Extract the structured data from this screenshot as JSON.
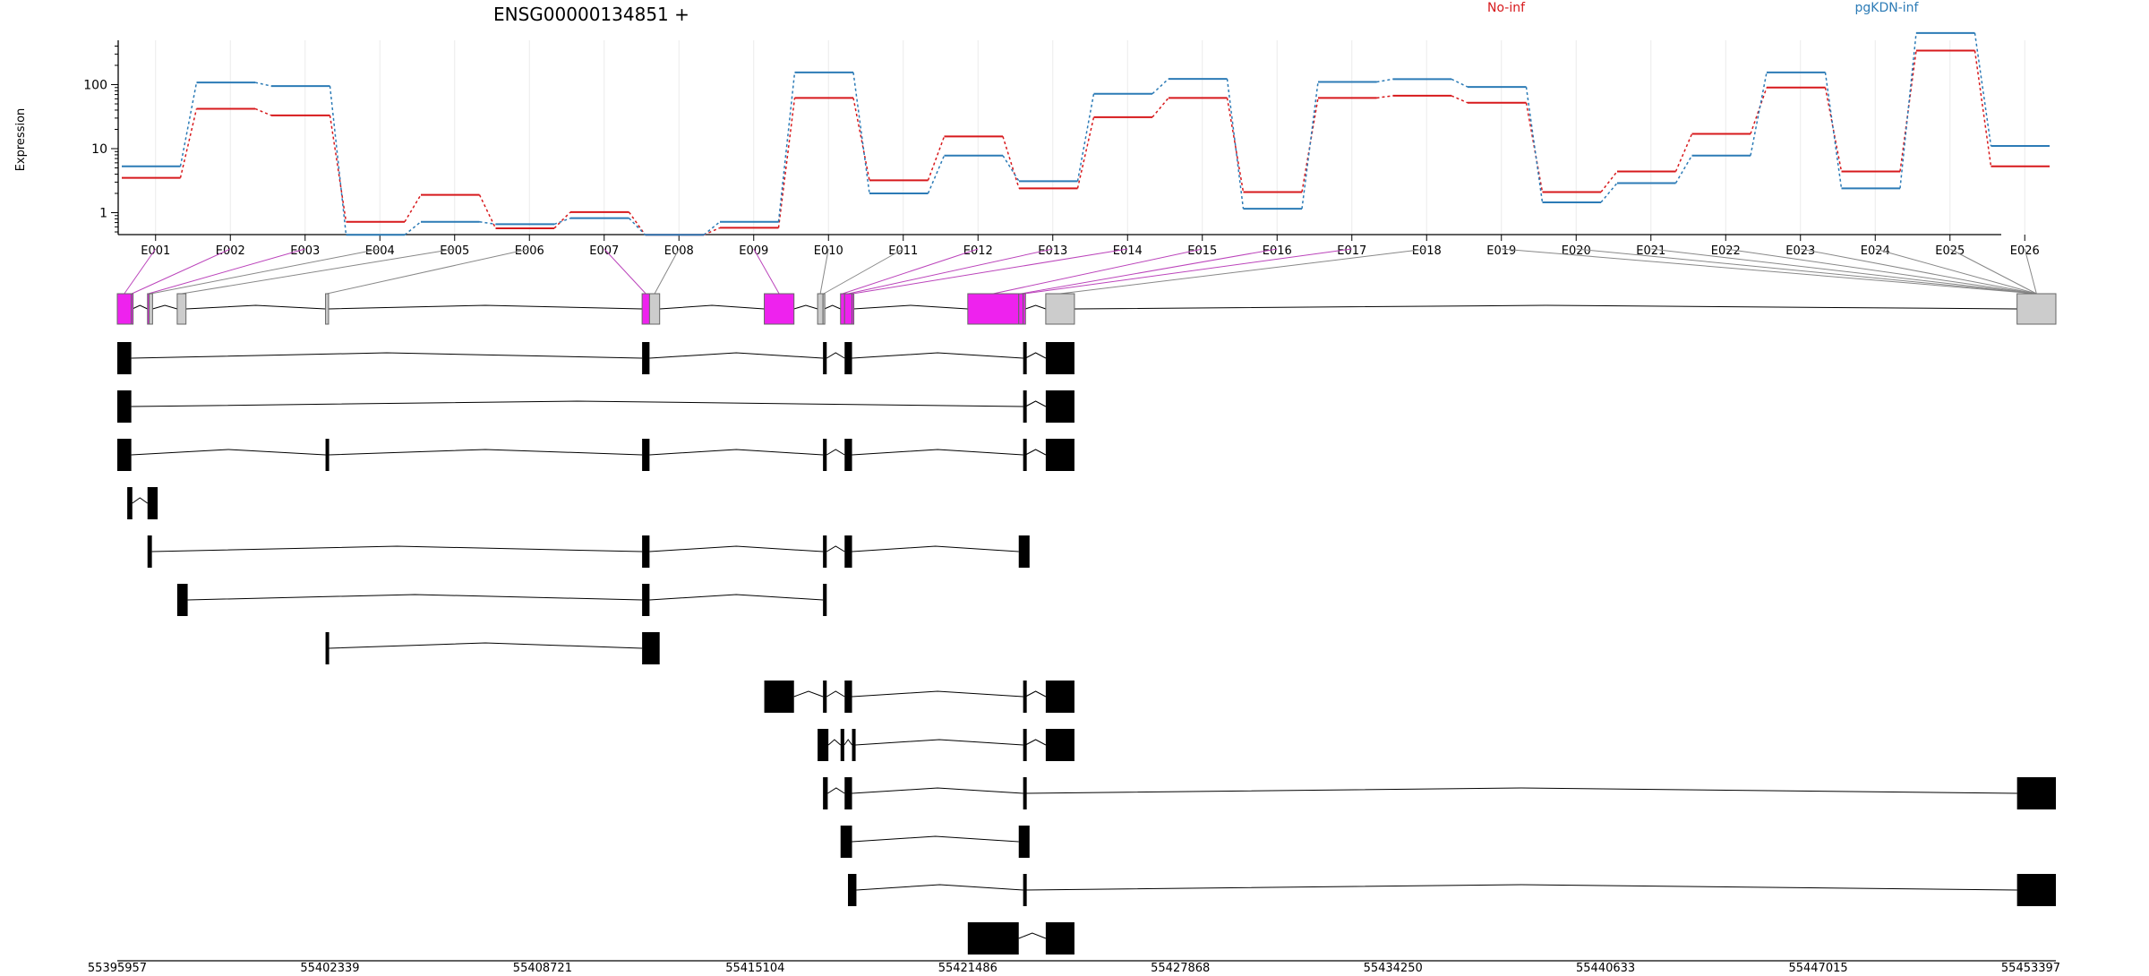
{
  "chart_data": {
    "type": "line",
    "title": "ENSG00000134851 +",
    "ylabel": "Expression",
    "yscale": "log",
    "yticks": [
      "1",
      "10",
      "100"
    ],
    "grid": true,
    "legend_placement": "top",
    "categories": [
      "E001",
      "E002",
      "E003",
      "E004",
      "E005",
      "E006",
      "E007",
      "E008",
      "E009",
      "E010",
      "E011",
      "E012",
      "E013",
      "E014",
      "E015",
      "E016",
      "E017",
      "E018",
      "E019",
      "E020",
      "E021",
      "E022",
      "E023",
      "E024",
      "E025",
      "E026"
    ],
    "series": [
      {
        "name": "No-inf",
        "color": "#d7191c",
        "values": [
          3.5,
          42,
          33,
          0.72,
          1.9,
          0.57,
          1.02,
          0.45,
          0.58,
          62,
          3.2,
          15.5,
          2.4,
          31,
          62,
          2.1,
          62,
          67,
          52,
          2.1,
          4.4,
          17,
          90,
          4.4,
          340,
          5.3
        ]
      },
      {
        "name": "pgKDN-inf",
        "color": "#2c7bb6",
        "values": [
          5.3,
          108,
          95,
          0.45,
          0.72,
          0.66,
          0.82,
          0.45,
          0.72,
          155,
          2.0,
          7.8,
          3.1,
          72,
          123,
          1.15,
          110,
          122,
          92,
          1.45,
          2.9,
          7.8,
          155,
          2.4,
          640,
          11
        ]
      }
    ],
    "genomic_axis": {
      "ticks": [
        "55395957",
        "55402339",
        "55408721",
        "55415104",
        "55421486",
        "55427868",
        "55434250",
        "55440633",
        "55447015",
        "55453397"
      ],
      "start": 55395957,
      "end": 55453397
    },
    "exons_bp": [
      [
        55395957,
        55396372
      ],
      [
        55396372,
        55396402
      ],
      [
        55396852,
        55396902
      ],
      [
        55396902,
        55397002
      ],
      [
        55397732,
        55397992
      ],
      [
        55402127,
        55402217
      ],
      [
        55411507,
        55411727
      ],
      [
        55411727,
        55412027
      ],
      [
        55415127,
        55416007
      ],
      [
        55416707,
        55416867
      ],
      [
        55416867,
        55416907
      ],
      [
        55417387,
        55417507
      ],
      [
        55417507,
        55417727
      ],
      [
        55417727,
        55417767
      ],
      [
        55421157,
        55422667
      ],
      [
        55422667,
        55422797
      ],
      [
        55422797,
        55422867
      ],
      [
        55423467,
        55424317
      ],
      [
        55452247,
        55453397
      ]
    ],
    "exon_highlight": [
      true,
      true,
      true,
      false,
      false,
      false,
      true,
      false,
      true,
      false,
      false,
      true,
      true,
      true,
      true,
      true,
      true,
      false,
      false
    ],
    "transcripts_bp": [
      [
        [
          55395957,
          55396372
        ],
        [
          55411507,
          55411727
        ],
        [
          55416867,
          55416977
        ],
        [
          55417507,
          55417727
        ],
        [
          55422797,
          55422867
        ],
        [
          55423467,
          55424317
        ]
      ],
      [
        [
          55395957,
          55396372
        ],
        [
          55422797,
          55422867
        ],
        [
          55423467,
          55424317
        ]
      ],
      [
        [
          55395957,
          55396372
        ],
        [
          55402127,
          55402217
        ],
        [
          55411507,
          55411727
        ],
        [
          55416867,
          55416977
        ],
        [
          55417507,
          55417727
        ],
        [
          55422797,
          55422867
        ],
        [
          55423467,
          55424317
        ]
      ],
      [
        [
          55396252,
          55396402
        ],
        [
          55396852,
          55397152
        ]
      ],
      [
        [
          55396852,
          55396982
        ],
        [
          55411507,
          55411727
        ],
        [
          55416867,
          55416977
        ],
        [
          55417507,
          55417727
        ],
        [
          55422667,
          55422987
        ]
      ],
      [
        [
          55397732,
          55398042
        ],
        [
          55411507,
          55411727
        ],
        [
          55416867,
          55416977
        ]
      ],
      [
        [
          55402127,
          55402217
        ],
        [
          55411507,
          55412027
        ]
      ],
      [
        [
          55415127,
          55416007
        ],
        [
          55416867,
          55416977
        ],
        [
          55417507,
          55417727
        ],
        [
          55422797,
          55422867
        ],
        [
          55423467,
          55424317
        ]
      ],
      [
        [
          55416707,
          55417027
        ],
        [
          55417387,
          55417497
        ],
        [
          55417727,
          55417827
        ],
        [
          55422797,
          55422867
        ],
        [
          55423467,
          55424317
        ]
      ],
      [
        [
          55416867,
          55417007
        ],
        [
          55417507,
          55417727
        ],
        [
          55422797,
          55422867
        ],
        [
          55452247,
          55453397
        ]
      ],
      [
        [
          55417387,
          55417727
        ],
        [
          55422667,
          55422987
        ]
      ],
      [
        [
          55417607,
          55417857
        ],
        [
          55422797,
          55422867
        ],
        [
          55452247,
          55453397
        ]
      ],
      [
        [
          55421157,
          55422667
        ],
        [
          55423467,
          55424317
        ]
      ]
    ]
  }
}
